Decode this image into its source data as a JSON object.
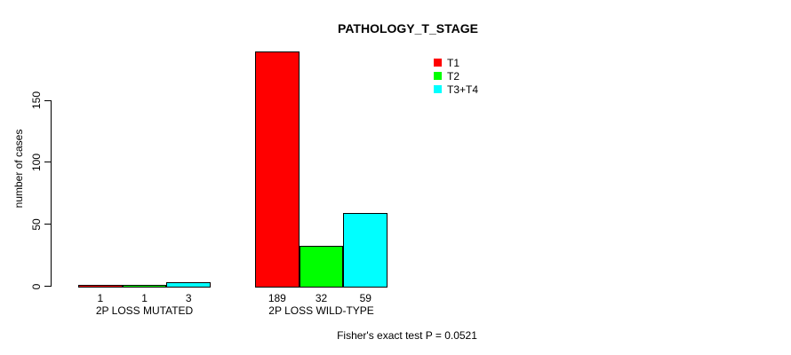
{
  "chart_data": {
    "type": "bar",
    "title": "PATHOLOGY_T_STAGE",
    "ylabel": "number of cases",
    "xlabel": "",
    "categories": [
      "2P LOSS MUTATED",
      "2P LOSS WILD-TYPE"
    ],
    "series": [
      {
        "name": "T1",
        "color": "#ff0000",
        "values": [
          1,
          189
        ]
      },
      {
        "name": "T2",
        "color": "#00ff00",
        "values": [
          1,
          32
        ]
      },
      {
        "name": "T3+T4",
        "color": "#00ffff",
        "values": [
          3,
          59
        ]
      }
    ],
    "yticks": [
      0,
      50,
      100,
      150
    ],
    "ylim": [
      0,
      190
    ],
    "grid": false,
    "show_bar_value_labels": true,
    "bar_border_color": "#000000",
    "legend_position": "top-right",
    "annotation": "Fisher's exact test P = 0.0521"
  },
  "colors": {
    "background": "#ffffff",
    "text": "#000000",
    "axis": "#000000"
  }
}
